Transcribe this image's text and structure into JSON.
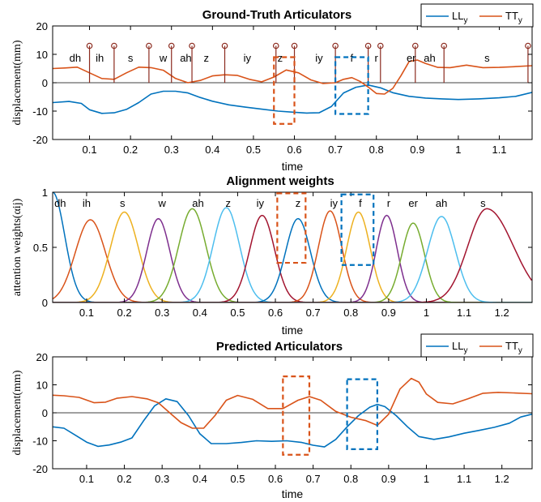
{
  "colors": {
    "blue": "#0072bd",
    "orange": "#d95319",
    "yellow": "#edb120",
    "purple": "#7e2f8e",
    "green": "#77ac30",
    "cyan": "#4dbeee",
    "crimson": "#a2142f",
    "dark_red": "#8b2a1e"
  },
  "chart_data": [
    {
      "type": "line",
      "title": "Ground-Truth Articulators",
      "xlabel": "time",
      "ylabel": "displacement(mm)",
      "xlim": [
        0.01,
        1.18
      ],
      "ylim": [
        -20,
        20
      ],
      "xticks": [
        0.1,
        0.2,
        0.3,
        0.4,
        0.5,
        0.6,
        0.7,
        0.8,
        0.9,
        1,
        1.1
      ],
      "xtick_labels": [
        "0.1",
        "0.2",
        "0.3",
        "0.4",
        "0.5",
        "0.6",
        "0.7",
        "0.8",
        "0.9",
        "1",
        "1.1"
      ],
      "yticks": [
        -20,
        -10,
        0,
        10,
        20
      ],
      "ytick_labels": [
        "-20",
        "-10",
        "0",
        "10",
        "20"
      ],
      "legend": "top-right",
      "legend_entries": [
        {
          "base": "LL",
          "sub": "y",
          "color_key": "blue"
        },
        {
          "base": "TT",
          "sub": "y",
          "color_key": "orange"
        }
      ],
      "series": [
        {
          "name": "LLy",
          "color_key": "blue",
          "x": [
            0.01,
            0.05,
            0.08,
            0.1,
            0.13,
            0.16,
            0.19,
            0.22,
            0.25,
            0.28,
            0.31,
            0.34,
            0.37,
            0.4,
            0.44,
            0.48,
            0.52,
            0.56,
            0.6,
            0.63,
            0.66,
            0.69,
            0.72,
            0.75,
            0.78,
            0.81,
            0.84,
            0.88,
            0.92,
            0.96,
            1.0,
            1.05,
            1.1,
            1.14,
            1.18
          ],
          "y": [
            -7,
            -6.6,
            -7.3,
            -9.5,
            -10.8,
            -10.6,
            -9.4,
            -7,
            -4,
            -3,
            -3,
            -3.6,
            -5.2,
            -6.5,
            -7.8,
            -8.6,
            -9.3,
            -10,
            -10.4,
            -10.7,
            -10.6,
            -8.4,
            -3.6,
            -1.6,
            -0.8,
            -1.8,
            -3.5,
            -4.8,
            -5.4,
            -5.7,
            -5.9,
            -5.7,
            -5.3,
            -4.8,
            -3.4
          ]
        },
        {
          "name": "TTy",
          "color_key": "orange",
          "x": [
            0.01,
            0.04,
            0.07,
            0.1,
            0.13,
            0.16,
            0.19,
            0.22,
            0.25,
            0.28,
            0.31,
            0.34,
            0.37,
            0.4,
            0.43,
            0.46,
            0.49,
            0.52,
            0.55,
            0.58,
            0.61,
            0.64,
            0.67,
            0.7,
            0.72,
            0.74,
            0.76,
            0.78,
            0.8,
            0.82,
            0.84,
            0.86,
            0.88,
            0.9,
            0.92,
            0.95,
            0.98,
            1.02,
            1.06,
            1.1,
            1.14,
            1.18
          ],
          "y": [
            5,
            5.2,
            5.5,
            3.5,
            1.5,
            1.2,
            3.5,
            5.5,
            5.3,
            4.4,
            1.5,
            0,
            0.8,
            2.4,
            2.8,
            2.6,
            1.2,
            0.3,
            2,
            4.5,
            3.5,
            1,
            -0.3,
            0,
            1.2,
            1.8,
            0.5,
            -1.5,
            -3.8,
            -4,
            -2,
            2.5,
            7.5,
            8,
            6.8,
            5.4,
            5.3,
            6.2,
            5.3,
            5.4,
            5.7,
            6
          ]
        }
      ],
      "phoneme_markers": [
        {
          "label": "dh",
          "x": 0.065
        },
        {
          "label": "ih",
          "x": 0.125
        },
        {
          "label": "s",
          "x": 0.2
        },
        {
          "label": "w",
          "x": 0.28
        },
        {
          "label": "ah",
          "x": 0.335
        },
        {
          "label": "z",
          "x": 0.385
        },
        {
          "label": "iy",
          "x": 0.485
        },
        {
          "label": "z",
          "x": 0.565
        },
        {
          "label": "iy",
          "x": 0.66
        },
        {
          "label": "f",
          "x": 0.74
        },
        {
          "label": "r",
          "x": 0.8
        },
        {
          "label": "er",
          "x": 0.885
        },
        {
          "label": "ah",
          "x": 0.93
        },
        {
          "label": "s",
          "x": 1.07
        }
      ],
      "phoneme_stems_x": [
        0.1,
        0.16,
        0.245,
        0.3,
        0.35,
        0.43,
        0.555,
        0.6,
        0.7,
        0.78,
        0.81,
        0.895,
        0.965,
        1.17
      ],
      "highlight_boxes": [
        {
          "color_key": "orange",
          "x0": 0.55,
          "x1": 0.6,
          "y0": -14.5,
          "y1": 9
        },
        {
          "color_key": "blue",
          "x0": 0.7,
          "x1": 0.78,
          "y0": -11,
          "y1": 9
        }
      ]
    },
    {
      "type": "line",
      "title": "Alignment weights",
      "xlabel": "time",
      "ylabel": "attention weights(αij)",
      "xlim": [
        0.01,
        1.28
      ],
      "ylim": [
        0,
        1
      ],
      "xticks": [
        0.1,
        0.2,
        0.3,
        0.4,
        0.5,
        0.6,
        0.7,
        0.8,
        0.9,
        1,
        1.1,
        1.2
      ],
      "xtick_labels": [
        "0.1",
        "0.2",
        "0.3",
        "0.4",
        "0.5",
        "0.6",
        "0.7",
        "0.8",
        "0.9",
        "1",
        "1.1",
        "1.2"
      ],
      "yticks": [
        0,
        0.5,
        1
      ],
      "ytick_labels": [
        "0",
        "0.5",
        "1"
      ],
      "phoneme_labels": [
        {
          "label": "dh",
          "x": 0.03
        },
        {
          "label": "ih",
          "x": 0.1
        },
        {
          "label": "s",
          "x": 0.195
        },
        {
          "label": "w",
          "x": 0.3
        },
        {
          "label": "ah",
          "x": 0.395
        },
        {
          "label": "z",
          "x": 0.475
        },
        {
          "label": "iy",
          "x": 0.56
        },
        {
          "label": "z",
          "x": 0.66
        },
        {
          "label": "iy",
          "x": 0.755
        },
        {
          "label": "f",
          "x": 0.825
        },
        {
          "label": "r",
          "x": 0.9
        },
        {
          "label": "er",
          "x": 0.965
        },
        {
          "label": "ah",
          "x": 1.04
        },
        {
          "label": "s",
          "x": 1.15
        }
      ],
      "series": [
        {
          "color_key": "blue",
          "peak_x": 0.01,
          "peak": 1.0,
          "width": 0.028,
          "right_width": 0.032
        },
        {
          "color_key": "orange",
          "peak_x": 0.11,
          "peak": 0.75,
          "width": 0.04
        },
        {
          "color_key": "yellow",
          "peak_x": 0.2,
          "peak": 0.82,
          "width": 0.037
        },
        {
          "color_key": "purple",
          "peak_x": 0.29,
          "peak": 0.76,
          "width": 0.031
        },
        {
          "color_key": "green",
          "peak_x": 0.38,
          "peak": 0.85,
          "width": 0.036
        },
        {
          "color_key": "cyan",
          "peak_x": 0.47,
          "peak": 0.86,
          "width": 0.035
        },
        {
          "color_key": "crimson",
          "peak_x": 0.565,
          "peak": 0.79,
          "width": 0.033
        },
        {
          "color_key": "blue",
          "peak_x": 0.66,
          "peak": 0.76,
          "width": 0.033
        },
        {
          "color_key": "orange",
          "peak_x": 0.745,
          "peak": 0.83,
          "width": 0.031
        },
        {
          "color_key": "yellow",
          "peak_x": 0.82,
          "peak": 0.82,
          "width": 0.031
        },
        {
          "color_key": "purple",
          "peak_x": 0.895,
          "peak": 0.79,
          "width": 0.028
        },
        {
          "color_key": "green",
          "peak_x": 0.965,
          "peak": 0.72,
          "width": 0.03
        },
        {
          "color_key": "cyan",
          "peak_x": 1.04,
          "peak": 0.78,
          "width": 0.037
        },
        {
          "color_key": "crimson",
          "peak_x": 1.16,
          "peak": 0.85,
          "width": 0.05,
          "right_width": 0.07
        }
      ],
      "highlight_boxes": [
        {
          "color_key": "orange",
          "x0": 0.605,
          "x1": 0.68,
          "y0": 0.36,
          "y1": 0.99
        },
        {
          "color_key": "blue",
          "x0": 0.775,
          "x1": 0.86,
          "y0": 0.34,
          "y1": 0.98
        }
      ]
    },
    {
      "type": "line",
      "title": "Predicted Articulators",
      "xlabel": "time",
      "ylabel": "displacement(mm)",
      "xlim": [
        0.01,
        1.28
      ],
      "ylim": [
        -20,
        20
      ],
      "xticks": [
        0.1,
        0.2,
        0.3,
        0.4,
        0.5,
        0.6,
        0.7,
        0.8,
        0.9,
        1,
        1.1,
        1.2
      ],
      "xtick_labels": [
        "0.1",
        "0.2",
        "0.3",
        "0.4",
        "0.5",
        "0.6",
        "0.7",
        "0.8",
        "0.9",
        "1",
        "1.1",
        "1.2"
      ],
      "yticks": [
        -20,
        -10,
        0,
        10,
        20
      ],
      "ytick_labels": [
        "-20",
        "-10",
        "0",
        "10",
        "20"
      ],
      "legend": "top-right",
      "legend_entries": [
        {
          "base": "LL",
          "sub": "y",
          "color_key": "blue"
        },
        {
          "base": "TT",
          "sub": "y",
          "color_key": "orange"
        }
      ],
      "series": [
        {
          "name": "LLy",
          "color_key": "blue",
          "x": [
            0.01,
            0.04,
            0.07,
            0.1,
            0.13,
            0.16,
            0.19,
            0.22,
            0.25,
            0.28,
            0.31,
            0.34,
            0.37,
            0.4,
            0.43,
            0.47,
            0.51,
            0.55,
            0.59,
            0.63,
            0.67,
            0.7,
            0.73,
            0.76,
            0.79,
            0.82,
            0.85,
            0.87,
            0.89,
            0.92,
            0.95,
            0.98,
            1.02,
            1.06,
            1.1,
            1.14,
            1.18,
            1.22,
            1.25,
            1.28
          ],
          "y": [
            -5,
            -5.5,
            -8,
            -10.5,
            -12,
            -11.5,
            -10.5,
            -9,
            -3,
            2.5,
            5,
            4,
            -1,
            -7.5,
            -11,
            -11,
            -10.6,
            -10,
            -10.2,
            -10,
            -10.6,
            -11.6,
            -12.2,
            -9.5,
            -5,
            -1,
            2,
            3,
            2.2,
            -1,
            -5,
            -8.5,
            -9.5,
            -8.6,
            -7.3,
            -6.3,
            -5.2,
            -3.7,
            -1.5,
            -0.5
          ]
        },
        {
          "name": "TTy",
          "color_key": "orange",
          "x": [
            0.01,
            0.04,
            0.08,
            0.12,
            0.15,
            0.18,
            0.22,
            0.26,
            0.29,
            0.32,
            0.35,
            0.38,
            0.41,
            0.44,
            0.47,
            0.5,
            0.54,
            0.58,
            0.62,
            0.66,
            0.69,
            0.72,
            0.76,
            0.8,
            0.84,
            0.87,
            0.9,
            0.93,
            0.96,
            0.98,
            1.0,
            1.03,
            1.07,
            1.11,
            1.15,
            1.19,
            1.23,
            1.28
          ],
          "y": [
            6.3,
            6.1,
            5.5,
            3.6,
            3.8,
            5.2,
            5.8,
            5,
            3.6,
            0,
            -3.5,
            -5.5,
            -5.5,
            -1,
            4.5,
            6.2,
            4.8,
            1.5,
            1.5,
            4.5,
            5.8,
            4.5,
            0.5,
            -1.6,
            -2.8,
            -4.5,
            -0.5,
            8.5,
            12.3,
            11,
            6.7,
            3.7,
            3.2,
            5,
            7,
            7.3,
            7.1,
            6.8
          ]
        }
      ],
      "highlight_boxes": [
        {
          "color_key": "orange",
          "x0": 0.62,
          "x1": 0.69,
          "y0": -15,
          "y1": 13
        },
        {
          "color_key": "blue",
          "x0": 0.79,
          "x1": 0.87,
          "y0": -13,
          "y1": 12
        }
      ]
    }
  ]
}
